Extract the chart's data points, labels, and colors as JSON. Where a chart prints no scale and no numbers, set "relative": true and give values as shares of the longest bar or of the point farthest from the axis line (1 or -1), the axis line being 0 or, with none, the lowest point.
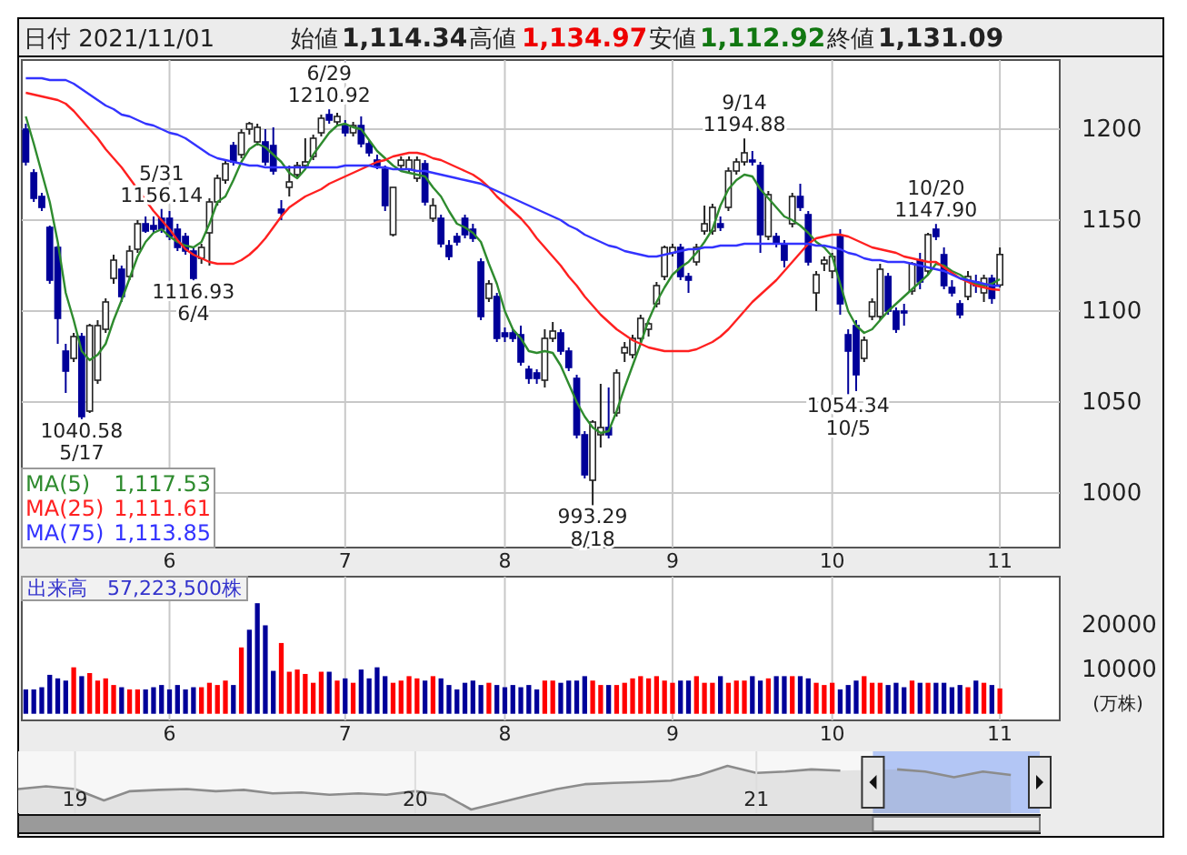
{
  "chart_data": [
    {
      "type": "other",
      "annotations": [
        "日付 2021/11/01",
        "始値",
        "1,114.34",
        "高値",
        "1,134.97",
        "安値",
        "1,112.92",
        "終値",
        "1,131.09"
      ]
    },
    {
      "type": "candlestick",
      "categories": [
        null,
        null,
        null,
        null,
        null,
        null,
        null,
        null,
        null,
        null,
        null,
        null,
        null,
        null,
        null,
        null,
        null,
        null,
        "6",
        null,
        null,
        null,
        null,
        null,
        null,
        null,
        null,
        null,
        null,
        null,
        null,
        null,
        null,
        null,
        null,
        null,
        null,
        null,
        null,
        null,
        "7",
        null,
        null,
        null,
        null,
        null,
        null,
        null,
        null,
        null,
        null,
        null,
        null,
        null,
        null,
        null,
        null,
        null,
        null,
        null,
        "8",
        null,
        null,
        null,
        null,
        null,
        null,
        null,
        null,
        null,
        null,
        null,
        null,
        null,
        null,
        null,
        null,
        null,
        null,
        null,
        null,
        "9",
        null,
        null,
        null,
        null,
        null,
        null,
        null,
        null,
        null,
        null,
        null,
        null,
        null,
        null,
        null,
        null,
        null,
        null,
        null,
        "10",
        null,
        null,
        null,
        null,
        null,
        null,
        null,
        null,
        null,
        null,
        null,
        null,
        null,
        null,
        null,
        null,
        null,
        null,
        null,
        null,
        "11"
      ],
      "ohlc": [
        [
          1200,
          1203,
          1180,
          1182
        ],
        [
          1176,
          1178,
          1160,
          1162
        ],
        [
          1163,
          1165,
          1155,
          1157
        ],
        [
          1146,
          1147,
          1115,
          1117
        ],
        [
          1135,
          1136,
          1082,
          1096
        ],
        [
          1078,
          1082,
          1055,
          1067
        ],
        [
          1074,
          1088,
          1072,
          1086
        ],
        [
          1086,
          1088,
          1040.58,
          1042
        ],
        [
          1045,
          1093,
          1044,
          1092
        ],
        [
          1062,
          1095,
          1060,
          1092
        ],
        [
          1090,
          1107,
          1088,
          1105
        ],
        [
          1118,
          1131,
          1115,
          1128
        ],
        [
          1123,
          1125,
          1105,
          1108
        ],
        [
          1119,
          1136,
          1117,
          1133
        ],
        [
          1134,
          1150,
          1132,
          1148
        ],
        [
          1148,
          1152,
          1143,
          1144
        ],
        [
          1147,
          1152,
          1143,
          1145
        ],
        [
          1151,
          1156.14,
          1143,
          1145
        ],
        [
          1151,
          1155,
          1139,
          1141
        ],
        [
          1145,
          1148,
          1133,
          1135
        ],
        [
          1141,
          1143,
          1131,
          1133
        ],
        [
          1133,
          1135,
          1116.93,
          1118
        ],
        [
          1129,
          1137,
          1126,
          1135
        ],
        [
          1143,
          1162,
          1125,
          1160
        ],
        [
          1160,
          1175,
          1158,
          1173
        ],
        [
          1172,
          1183,
          1170,
          1181
        ],
        [
          1191,
          1193,
          1180,
          1182
        ],
        [
          1186,
          1200,
          1184,
          1198
        ],
        [
          1200,
          1204,
          1197,
          1203
        ],
        [
          1193,
          1203,
          1191,
          1201
        ],
        [
          1193,
          1200,
          1180,
          1182
        ],
        [
          1191,
          1201,
          1175,
          1177
        ],
        [
          1156,
          1161,
          1150,
          1154
        ],
        [
          1168,
          1180,
          1163,
          1171
        ],
        [
          1175,
          1182,
          1173,
          1180
        ],
        [
          1180,
          1195,
          1178,
          1182
        ],
        [
          1185,
          1197,
          1183,
          1195
        ],
        [
          1198,
          1208,
          1196,
          1206
        ],
        [
          1208,
          1210.92,
          1203,
          1205
        ],
        [
          1204,
          1209,
          1202,
          1207
        ],
        [
          1202,
          1205,
          1196,
          1198
        ],
        [
          1198,
          1204,
          1196,
          1202
        ],
        [
          1202,
          1207,
          1190,
          1192
        ],
        [
          1192,
          1194,
          1185,
          1187
        ],
        [
          1183,
          1186,
          1178,
          1180
        ],
        [
          1178,
          1180,
          1155,
          1158
        ],
        [
          1142,
          1168,
          1141,
          1168
        ],
        [
          1180,
          1185,
          1178,
          1183
        ],
        [
          1178,
          1185,
          1176,
          1183
        ],
        [
          1173,
          1185,
          1171,
          1183
        ],
        [
          1181,
          1183,
          1158,
          1160
        ],
        [
          1151,
          1162,
          1149,
          1158
        ],
        [
          1151,
          1153,
          1135,
          1137
        ],
        [
          1136,
          1139,
          1128,
          1130
        ],
        [
          1141,
          1143,
          1136,
          1138
        ],
        [
          1151,
          1153,
          1140,
          1142
        ],
        [
          1145,
          1148,
          1138,
          1140
        ],
        [
          1127,
          1129,
          1095,
          1097
        ],
        [
          1107,
          1117,
          1105,
          1115
        ],
        [
          1108,
          1110,
          1083,
          1085
        ],
        [
          1088,
          1091,
          1083,
          1086
        ],
        [
          1088,
          1090,
          1083,
          1085
        ],
        [
          1087,
          1092,
          1070,
          1072
        ],
        [
          1068,
          1070,
          1060,
          1063
        ],
        [
          1066,
          1068,
          1060,
          1063
        ],
        [
          1062,
          1090,
          1058,
          1085
        ],
        [
          1085,
          1094,
          1083,
          1089
        ],
        [
          1088,
          1090,
          1076,
          1078
        ],
        [
          1078,
          1080,
          1067,
          1069
        ],
        [
          1063,
          1065,
          1030,
          1032
        ],
        [
          1032,
          1034,
          1008,
          1010
        ],
        [
          1007,
          1040,
          993.29,
          1039
        ],
        [
          1032,
          1060,
          1025,
          1036
        ],
        [
          1036,
          1058,
          1030,
          1032
        ],
        [
          1044,
          1068,
          1042,
          1066
        ],
        [
          1077,
          1083,
          1072,
          1080
        ],
        [
          1076,
          1087,
          1074,
          1085
        ],
        [
          1085,
          1098,
          1083,
          1096
        ],
        [
          1090,
          1094,
          1086,
          1093
        ],
        [
          1104,
          1116,
          1102,
          1114
        ],
        [
          1119,
          1136,
          1117,
          1135
        ],
        [
          1132,
          1137,
          1130,
          1135
        ],
        [
          1135,
          1137,
          1117,
          1119
        ],
        [
          1119,
          1121,
          1110,
          1117
        ],
        [
          1127,
          1137,
          1125,
          1135
        ],
        [
          1144,
          1158,
          1142,
          1148
        ],
        [
          1144,
          1159,
          1142,
          1157
        ],
        [
          1148,
          1152,
          1144,
          1146
        ],
        [
          1157,
          1179,
          1155,
          1177
        ],
        [
          1177,
          1184,
          1175,
          1182
        ],
        [
          1182,
          1194.88,
          1180,
          1187
        ],
        [
          1183,
          1188,
          1180,
          1182
        ],
        [
          1180,
          1182,
          1132,
          1142
        ],
        [
          1141,
          1166,
          1139,
          1164
        ],
        [
          1141,
          1143,
          1135,
          1137
        ],
        [
          1137,
          1139,
          1124,
          1128
        ],
        [
          1148,
          1165,
          1146,
          1163
        ],
        [
          1163,
          1170,
          1155,
          1157
        ],
        [
          1153,
          1155,
          1125,
          1127
        ],
        [
          1110,
          1122,
          1100,
          1120
        ],
        [
          1126,
          1130,
          1122,
          1128
        ],
        [
          1122,
          1132,
          1118,
          1130
        ],
        [
          1141,
          1145,
          1098,
          1104
        ],
        [
          1087,
          1090,
          1054.34,
          1078
        ],
        [
          1092,
          1095,
          1056,
          1065
        ],
        [
          1074,
          1086,
          1072,
          1084
        ],
        [
          1097,
          1107,
          1095,
          1105
        ],
        [
          1097,
          1126,
          1095,
          1123
        ],
        [
          1119,
          1121,
          1098,
          1100
        ],
        [
          1100,
          1102,
          1088,
          1090
        ],
        [
          1100,
          1104,
          1092,
          1099
        ],
        [
          1111,
          1127,
          1109,
          1126
        ],
        [
          1128,
          1132,
          1112,
          1116
        ],
        [
          1122,
          1143,
          1120,
          1142
        ],
        [
          1145,
          1147.9,
          1139,
          1141
        ],
        [
          1131,
          1135,
          1112,
          1114
        ],
        [
          1113,
          1117,
          1108,
          1110
        ],
        [
          1104,
          1106,
          1096,
          1098
        ],
        [
          1108,
          1122,
          1106,
          1119
        ],
        [
          1116,
          1120,
          1110,
          1114
        ],
        [
          1110,
          1120,
          1105,
          1118
        ],
        [
          1118,
          1120,
          1104,
          1107
        ],
        [
          1114.34,
          1134.97,
          1112.92,
          1131.09
        ]
      ],
      "series": [
        {
          "name": "MA(5)",
          "type": "line",
          "color": "#2e8b2e",
          "values": [
            1207,
            1192,
            1176,
            1160,
            1138,
            1110,
            1095,
            1078,
            1073,
            1076,
            1082,
            1095,
            1106,
            1118,
            1130,
            1138,
            1143,
            1145,
            1141,
            1138,
            1136,
            1135,
            1138,
            1148,
            1160,
            1163,
            1172,
            1182,
            1189,
            1192,
            1190,
            1186,
            1182,
            1176,
            1173,
            1178,
            1186,
            1192,
            1198,
            1202,
            1203,
            1201,
            1200,
            1194,
            1188,
            1184,
            1180,
            1177,
            1176,
            1175,
            1174,
            1168,
            1163,
            1155,
            1148,
            1146,
            1143,
            1138,
            1126,
            1115,
            1100,
            1090,
            1085,
            1078,
            1077,
            1078,
            1077,
            1070,
            1060,
            1050,
            1042,
            1036,
            1033,
            1034,
            1045,
            1058,
            1070,
            1082,
            1095,
            1105,
            1113,
            1120,
            1124,
            1127,
            1132,
            1138,
            1145,
            1158,
            1167,
            1172,
            1175,
            1174,
            1167,
            1162,
            1157,
            1152,
            1150,
            1147,
            1143,
            1138,
            1135,
            1130,
            1115,
            1100,
            1092,
            1088,
            1090,
            1095,
            1100,
            1104,
            1108,
            1112,
            1116,
            1120,
            1126,
            1125,
            1122,
            1120,
            1117,
            1115,
            1114,
            1115,
            1117.53
          ]
        },
        {
          "name": "MA(25)",
          "type": "line",
          "color": "#ff2020",
          "values": [
            1220,
            1219,
            1218,
            1217,
            1216,
            1214,
            1210,
            1205,
            1200,
            1195,
            1189,
            1184,
            1179,
            1173,
            1167,
            1161,
            1155,
            1150,
            1145,
            1139,
            1134,
            1131,
            1129,
            1127,
            1126,
            1126,
            1126,
            1128,
            1131,
            1135,
            1140,
            1146,
            1152,
            1157,
            1160,
            1163,
            1165,
            1167,
            1170,
            1172,
            1174,
            1176,
            1178,
            1180,
            1182,
            1183,
            1185,
            1186,
            1187,
            1187,
            1186,
            1184,
            1183,
            1181,
            1179,
            1177,
            1175,
            1172,
            1168,
            1163,
            1159,
            1155,
            1151,
            1146,
            1140,
            1135,
            1130,
            1125,
            1119,
            1114,
            1108,
            1103,
            1098,
            1094,
            1090,
            1087,
            1084,
            1082,
            1080,
            1079,
            1078,
            1078,
            1078,
            1078,
            1079,
            1081,
            1083,
            1086,
            1090,
            1095,
            1100,
            1105,
            1109,
            1113,
            1117,
            1122,
            1127,
            1132,
            1137,
            1140,
            1141,
            1142,
            1142,
            1141,
            1139,
            1137,
            1135,
            1134,
            1133,
            1132,
            1130,
            1129,
            1128,
            1127,
            1127,
            1124,
            1121,
            1118,
            1116,
            1114,
            1113,
            1112,
            1111.61
          ]
        },
        {
          "name": "MA(75)",
          "type": "line",
          "color": "#3333ff",
          "values": [
            1228,
            1228,
            1228,
            1227,
            1227,
            1227,
            1225,
            1222,
            1219,
            1216,
            1213,
            1211,
            1208,
            1207,
            1205,
            1203,
            1202,
            1200,
            1198,
            1197,
            1195,
            1192,
            1189,
            1186,
            1184,
            1183,
            1182,
            1181,
            1180,
            1180,
            1179,
            1179,
            1179,
            1179,
            1179,
            1179,
            1179,
            1179,
            1179,
            1179,
            1180,
            1180,
            1180,
            1180,
            1179,
            1179,
            1178,
            1178,
            1178,
            1177,
            1177,
            1176,
            1175,
            1174,
            1173,
            1172,
            1171,
            1170,
            1168,
            1166,
            1164,
            1162,
            1160,
            1158,
            1156,
            1154,
            1152,
            1150,
            1147,
            1145,
            1142,
            1140,
            1138,
            1136,
            1135,
            1133,
            1132,
            1131,
            1130,
            1130,
            1131,
            1132,
            1133,
            1134,
            1134,
            1135,
            1135,
            1136,
            1136,
            1136,
            1137,
            1137,
            1137,
            1137,
            1137,
            1137,
            1137,
            1137,
            1137,
            1136,
            1136,
            1135,
            1134,
            1132,
            1131,
            1129,
            1128,
            1128,
            1127,
            1127,
            1127,
            1126,
            1125,
            1124,
            1123,
            1122,
            1120,
            1118,
            1117,
            1116,
            1115,
            1114,
            1113.85
          ]
        }
      ],
      "ylim": [
        970,
        1238
      ],
      "yticks": [
        1000,
        1050,
        1100,
        1150,
        1200
      ],
      "grid": true,
      "legend": "bottom left",
      "annotations": [
        {
          "text": "1040.58\n5/17",
          "y": 1040.58
        },
        {
          "text": "5/31\n1156.14",
          "y": 1156.14
        },
        {
          "text": "1116.93\n6/4",
          "y": 1116.93
        },
        {
          "text": "6/29\n1210.92",
          "y": 1210.92
        },
        {
          "text": "993.29\n8/18",
          "y": 993.29
        },
        {
          "text": "9/14\n1194.88",
          "y": 1194.88
        },
        {
          "text": "1054.34\n10/5",
          "y": 1054.34
        },
        {
          "text": "10/20\n1147.90",
          "y": 1147.9
        },
        "1,117.53",
        "1,111.61",
        "1,113.85"
      ]
    },
    {
      "type": "bar",
      "categories": [
        null,
        null,
        null,
        null,
        null,
        null,
        null,
        null,
        null,
        null,
        null,
        null,
        null,
        null,
        null,
        null,
        null,
        null,
        "6",
        null,
        null,
        null,
        null,
        null,
        null,
        null,
        null,
        null,
        null,
        null,
        null,
        null,
        null,
        null,
        null,
        null,
        null,
        null,
        null,
        null,
        "7",
        null,
        null,
        null,
        null,
        null,
        null,
        null,
        null,
        null,
        null,
        null,
        null,
        null,
        null,
        null,
        null,
        null,
        null,
        null,
        "8",
        null,
        null,
        null,
        null,
        null,
        null,
        null,
        null,
        null,
        null,
        null,
        null,
        null,
        null,
        null,
        null,
        null,
        null,
        null,
        null,
        "9",
        null,
        null,
        null,
        null,
        null,
        null,
        null,
        null,
        null,
        null,
        null,
        null,
        null,
        null,
        null,
        null,
        null,
        null,
        null,
        "10",
        null,
        null,
        null,
        null,
        null,
        null,
        null,
        null,
        null,
        null,
        null,
        null,
        null,
        null,
        null,
        null,
        null,
        null,
        null,
        null,
        "11"
      ],
      "values": [
        5500,
        5500,
        6000,
        8800,
        8000,
        7500,
        10500,
        8500,
        9200,
        7500,
        8000,
        6500,
        6000,
        5500,
        5500,
        5500,
        6000,
        6500,
        5500,
        6500,
        5500,
        6000,
        6000,
        7000,
        6500,
        7500,
        6500,
        15000,
        19000,
        25000,
        20000,
        9700,
        16000,
        9500,
        10000,
        9000,
        7000,
        9500,
        9500,
        7500,
        8000,
        7000,
        10000,
        8000,
        10500,
        8500,
        7000,
        7500,
        8500,
        8000,
        7500,
        8500,
        8000,
        6500,
        5500,
        7000,
        7500,
        6500,
        7000,
        6500,
        6000,
        6500,
        6000,
        6500,
        5500,
        7500,
        7500,
        7000,
        7500,
        7500,
        8500,
        7500,
        6500,
        6500,
        6500,
        7000,
        8000,
        8500,
        8000,
        8500,
        7500,
        7000,
        7500,
        7500,
        8500,
        7000,
        7000,
        8500,
        7000,
        7500,
        7500,
        8500,
        7500,
        8000,
        8500,
        8500,
        8500,
        8500,
        8000,
        7000,
        6500,
        7000,
        5500,
        6500,
        7500,
        8500,
        7000,
        7000,
        6500,
        7000,
        6000,
        7500,
        7000,
        7000,
        7000,
        7000,
        6000,
        6500,
        6000,
        7500,
        7000,
        6500,
        5722
      ],
      "colors": [
        "#000099",
        "#000099",
        "#000099",
        "#000099",
        "#000099",
        "#000099",
        "#ff0000",
        "#000099",
        "#ff0000",
        "#ff0000",
        "#ff0000",
        "#ff0000",
        "#000099",
        "#ff0000",
        "#ff0000",
        "#000099",
        "#000099",
        "#000099",
        "#000099",
        "#000099",
        "#000099",
        "#000099",
        "#ff0000",
        "#ff0000",
        "#ff0000",
        "#ff0000",
        "#000099",
        "#ff0000",
        "#000099",
        "#000099",
        "#000099",
        "#000099",
        "#ff0000",
        "#ff0000",
        "#ff0000",
        "#ff0000",
        "#ff0000",
        "#ff0000",
        "#000099",
        "#ff0000",
        "#000099",
        "#ff0000",
        "#000099",
        "#000099",
        "#000099",
        "#000099",
        "#ff0000",
        "#ff0000",
        "#ff0000",
        "#ff0000",
        "#000099",
        "#ff0000",
        "#000099",
        "#000099",
        "#000099",
        "#000099",
        "#000099",
        "#000099",
        "#ff0000",
        "#000099",
        "#000099",
        "#000099",
        "#000099",
        "#000099",
        "#000099",
        "#ff0000",
        "#ff0000",
        "#000099",
        "#000099",
        "#000099",
        "#000099",
        "#ff0000",
        "#ff0000",
        "#000099",
        "#ff0000",
        "#ff0000",
        "#ff0000",
        "#ff0000",
        "#ff0000",
        "#ff0000",
        "#ff0000",
        "#ff0000",
        "#000099",
        "#000099",
        "#ff0000",
        "#ff0000",
        "#ff0000",
        "#000099",
        "#ff0000",
        "#ff0000",
        "#ff0000",
        "#000099",
        "#000099",
        "#ff0000",
        "#000099",
        "#000099",
        "#ff0000",
        "#000099",
        "#000099",
        "#ff0000",
        "#ff0000",
        "#ff0000",
        "#000099",
        "#000099",
        "#000099",
        "#ff0000",
        "#ff0000",
        "#ff0000",
        "#000099",
        "#000099",
        "#000099",
        "#ff0000",
        "#000099",
        "#ff0000",
        "#000099",
        "#000099",
        "#000099",
        "#000099",
        "#ff0000",
        "#000099",
        "#ff0000",
        "#000099",
        "#ff0000"
      ],
      "ylim": [
        -1500,
        31000
      ],
      "yticks": [
        10000,
        20000
      ],
      "ylabel": "(万株)",
      "grid": "x",
      "annotations": [
        "出来高　57,223,500株"
      ]
    },
    {
      "type": "area",
      "relative": true,
      "color": "#8c8c8c",
      "x": [
        "2018-11",
        "2018-12",
        "2019-01",
        "2019-02",
        "2019-03",
        "2019-04",
        "2019-05",
        "2019-06",
        "2019-07",
        "2019-08",
        "2019-09",
        "2019-10",
        "2019-11",
        "2019-12",
        "2020-01",
        "2020-02",
        "2020-03",
        "2020-04",
        "2020-05",
        "2020-06",
        "2020-07",
        "2020-08",
        "2020-09",
        "2020-10",
        "2020-11",
        "2020-12",
        "2021-01",
        "2021-02",
        "2021-03",
        "2021-04",
        "2021-05",
        "2021-06",
        "2021-07",
        "2021-08",
        "2021-09",
        "2021-10"
      ],
      "values": [
        0.47,
        0.53,
        0.47,
        0.21,
        0.42,
        0.45,
        0.47,
        0.42,
        0.45,
        0.37,
        0.39,
        0.34,
        0.37,
        0.34,
        0.42,
        0.34,
        0,
        0.16,
        0.32,
        0.47,
        0.58,
        0.61,
        0.63,
        0.66,
        0.79,
        1,
        0.84,
        0.87,
        0.92,
        0.89,
        null,
        0.92,
        0.87,
        0.74,
        0.87,
        0.79
      ],
      "grid": "x",
      "xlim": [
        "2018-11",
        "2021-11"
      ],
      "xticks": [
        {
          "value": "2019-01",
          "label": "19"
        },
        {
          "value": "2020-01",
          "label": "20"
        },
        {
          "value": "2021-01",
          "label": "21"
        }
      ],
      "bands": [
        {
          "axis": "x",
          "from": "2021-05-06",
          "to": "2021-11-01",
          "color": "#b3c6f5"
        }
      ]
    }
  ]
}
